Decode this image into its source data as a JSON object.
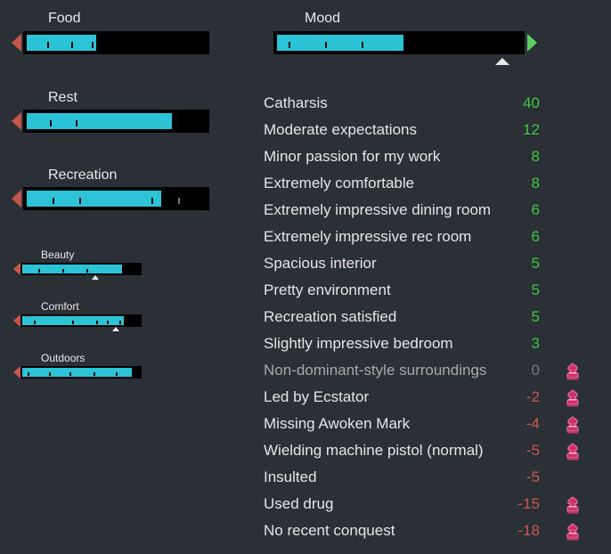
{
  "needs": {
    "food": {
      "label": "Food",
      "level": 0.39
    },
    "rest": {
      "label": "Rest",
      "level": 0.81
    },
    "recreation": {
      "label": "Recreation",
      "level": 0.75
    },
    "mood": {
      "label": "Mood",
      "level": 0.52
    },
    "beauty": {
      "label": "Beauty",
      "level": 0.85
    },
    "comfort": {
      "label": "Comfort",
      "level": 0.86
    },
    "outdoors": {
      "label": "Outdoors",
      "level": 0.93
    }
  },
  "thoughts": [
    {
      "label": "Catharsis",
      "value": "40",
      "sign": "pos"
    },
    {
      "label": "Moderate expectations",
      "value": "12",
      "sign": "pos"
    },
    {
      "label": "Minor passion for my work",
      "value": "8",
      "sign": "pos"
    },
    {
      "label": "Extremely comfortable",
      "value": "8",
      "sign": "pos"
    },
    {
      "label": "Extremely impressive dining room",
      "value": "6",
      "sign": "pos"
    },
    {
      "label": "Extremely impressive rec room",
      "value": "6",
      "sign": "pos"
    },
    {
      "label": "Spacious interior",
      "value": "5",
      "sign": "pos"
    },
    {
      "label": "Pretty environment",
      "value": "5",
      "sign": "pos"
    },
    {
      "label": "Recreation satisfied",
      "value": "5",
      "sign": "pos"
    },
    {
      "label": "Slightly impressive bedroom",
      "value": "3",
      "sign": "pos"
    },
    {
      "label": "Non-dominant-style surroundings",
      "value": "0",
      "sign": "zero",
      "icon": "ideology-icon"
    },
    {
      "label": "Led by Ecstator",
      "value": "-2",
      "sign": "neg",
      "icon": "ideology-icon"
    },
    {
      "label": "Missing Awoken Mark",
      "value": "-4",
      "sign": "neg",
      "icon": "ideology-icon"
    },
    {
      "label": "Wielding machine pistol (normal)",
      "value": "-5",
      "sign": "neg",
      "icon": "ideology-icon"
    },
    {
      "label": "Insulted",
      "value": "-5",
      "sign": "neg"
    },
    {
      "label": "Used drug",
      "value": "-15",
      "sign": "neg",
      "icon": "ideology-icon"
    },
    {
      "label": "No recent conquest",
      "value": "-18",
      "sign": "neg",
      "icon": "ideology-icon"
    }
  ],
  "colors": {
    "background": "#2b2f36",
    "bar_fill": "#2dc3d6",
    "positive": "#3ec83e",
    "negative": "#c85a50",
    "neutral": "#7a7a7a",
    "ideology_icon": "#d0306a"
  }
}
